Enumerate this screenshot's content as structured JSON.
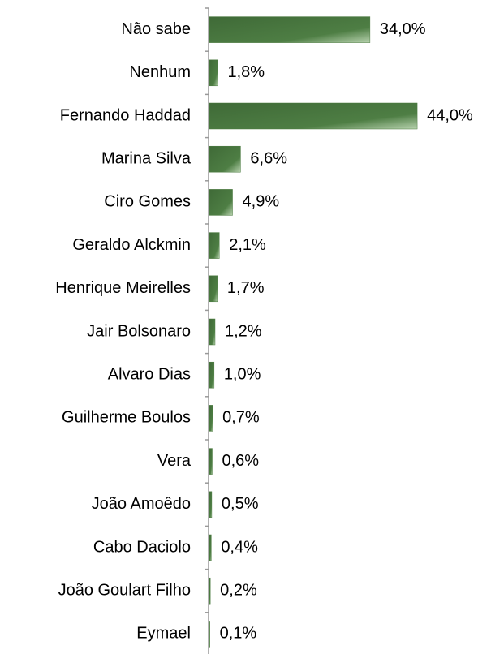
{
  "chart_data": {
    "type": "bar",
    "categories": [
      "Não sabe",
      "Nenhum",
      "Fernando Haddad",
      "Marina Silva",
      "Ciro Gomes",
      "Geraldo Alckmin",
      "Henrique Meirelles",
      "Jair Bolsonaro",
      "Alvaro Dias",
      "Guilherme Boulos",
      "Vera",
      "João Amoêdo",
      "Cabo Daciolo",
      "João Goulart Filho",
      "Eymael"
    ],
    "values": [
      34.0,
      1.8,
      44.0,
      6.6,
      4.9,
      2.1,
      1.7,
      1.2,
      1.0,
      0.7,
      0.6,
      0.5,
      0.4,
      0.2,
      0.1
    ],
    "value_labels": [
      "34,0%",
      "1,8%",
      "44,0%",
      "6,6%",
      "4,9%",
      "2,1%",
      "1,7%",
      "1,2%",
      "1,0%",
      "0,7%",
      "0,6%",
      "0,5%",
      "0,4%",
      "0,2%",
      "0,1%"
    ],
    "color": "#4a7a3f"
  }
}
